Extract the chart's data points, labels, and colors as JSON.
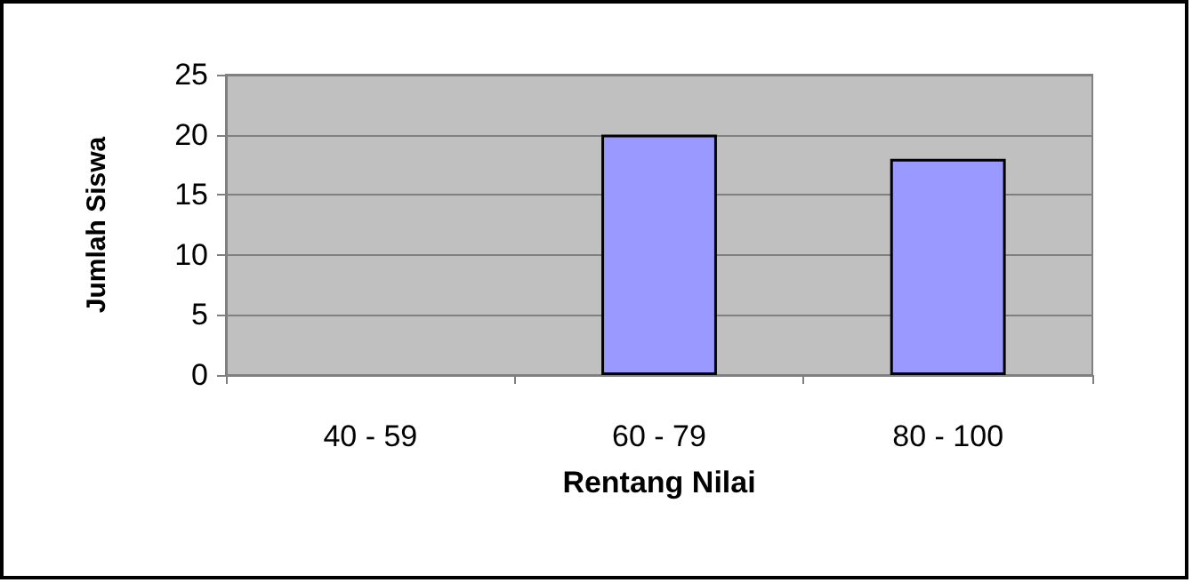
{
  "chart_data": {
    "type": "bar",
    "xlabel": "Rentang Nilai",
    "ylabel": "Jumlah Siswa",
    "categories": [
      "40 - 59",
      "60 - 79",
      "80 - 100"
    ],
    "values": [
      0,
      20,
      18
    ],
    "color": "#9999ff",
    "ylim": [
      0,
      25
    ],
    "yticks": [
      0,
      5,
      10,
      15,
      20,
      25
    ],
    "grid": "y"
  }
}
